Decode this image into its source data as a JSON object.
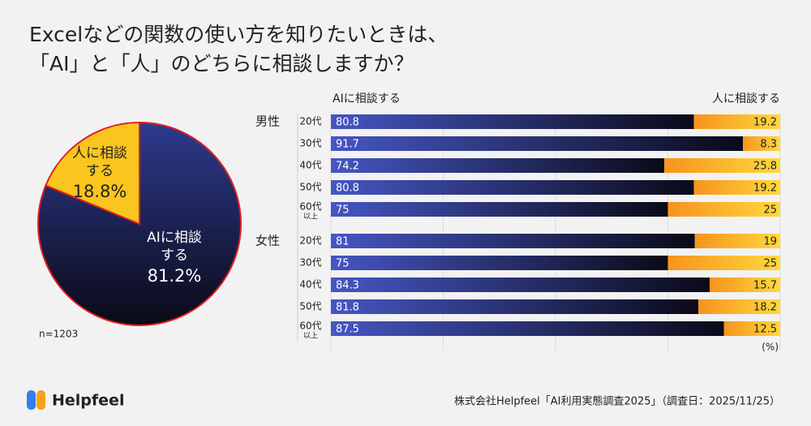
{
  "title": [
    "Excelなどの関数の使い方を知りたいときは、",
    "「AI」と「人」のどちらに相談しますか？"
  ],
  "chart_data": [
    {
      "type": "pie",
      "categories": [
        "AIに相談する",
        "人に相談する"
      ],
      "values": [
        81.2,
        18.8
      ],
      "value_labels": [
        "81.2%",
        "18.8%"
      ],
      "colors": [
        [
          "#2e3a8e",
          "#0a0a16"
        ],
        [
          "#f9c51e",
          "#f9c51e"
        ]
      ],
      "edge_color": "#e02020",
      "sample_size": "n=1203"
    },
    {
      "type": "bar",
      "orientation": "horizontal",
      "stacked": true,
      "groups": [
        "男性",
        "女性"
      ],
      "categories": [
        [
          [
            "20代"
          ],
          [
            "30代"
          ],
          [
            "40代"
          ],
          [
            "50代"
          ],
          [
            "60代",
            "以上"
          ]
        ],
        [
          [
            "20代"
          ],
          [
            "30代"
          ],
          [
            "40代"
          ],
          [
            "50代"
          ],
          [
            "60代",
            "以上"
          ]
        ]
      ],
      "series": [
        {
          "name": "AIに相談する",
          "gradient": [
            "#4656c4",
            "#0a0a18"
          ],
          "values": [
            [
              80.8,
              91.7,
              74.2,
              80.8,
              75
            ],
            [
              81,
              75,
              84.3,
              81.8,
              87.5
            ]
          ]
        },
        {
          "name": "人に相談する",
          "gradient": [
            "#f7931e",
            "#ffd83c"
          ],
          "values": [
            [
              19.2,
              8.3,
              25.8,
              19.2,
              25
            ],
            [
              19,
              25,
              15.7,
              18.2,
              12.5
            ]
          ]
        }
      ],
      "xlim": [
        0,
        100
      ],
      "xticks": [
        0,
        25,
        50,
        75,
        100
      ],
      "grid": true,
      "unit": "(%)"
    }
  ],
  "footer": {
    "logo": "Helpfeel",
    "source": "株式会社Helpfeel「AI利用実態調査2025」（調査日：2025/11/25）"
  }
}
